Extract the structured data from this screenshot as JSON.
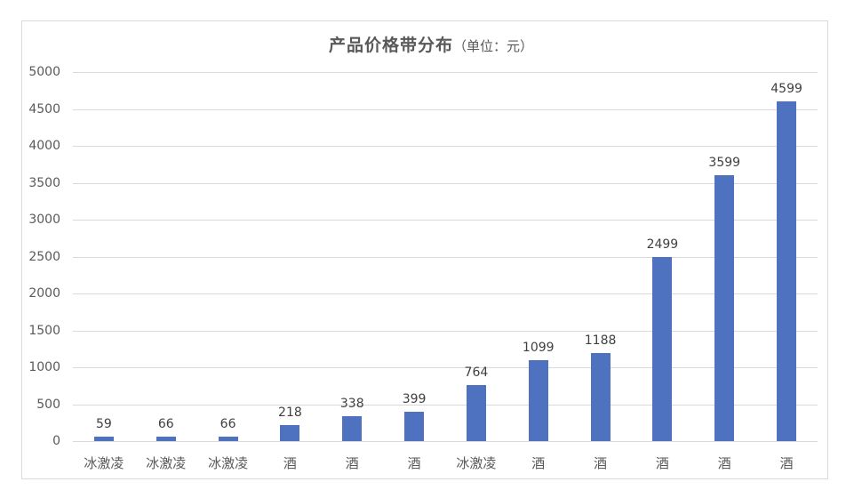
{
  "chart_data": {
    "type": "bar",
    "title": "产品价格带分布",
    "subtitle": "（单位：元）",
    "xlabel": "",
    "ylabel": "",
    "ylim": [
      0,
      5000
    ],
    "yticks": [
      0,
      500,
      1000,
      1500,
      2000,
      2500,
      3000,
      3500,
      4000,
      4500,
      5000
    ],
    "grid": true,
    "legend": null,
    "bar_color": "#4e72bf",
    "categories": [
      "冰激凌",
      "冰激凌",
      "冰激凌",
      "酒",
      "酒",
      "酒",
      "冰激凌",
      "酒",
      "酒",
      "酒",
      "酒",
      "酒"
    ],
    "values": [
      59,
      66,
      66,
      218,
      338,
      399,
      764,
      1099,
      1188,
      2499,
      3599,
      4599
    ],
    "data_labels": [
      "59",
      "66",
      "66",
      "218",
      "338",
      "399",
      "764",
      "1099",
      "1188",
      "2499",
      "3599",
      "4599"
    ]
  }
}
